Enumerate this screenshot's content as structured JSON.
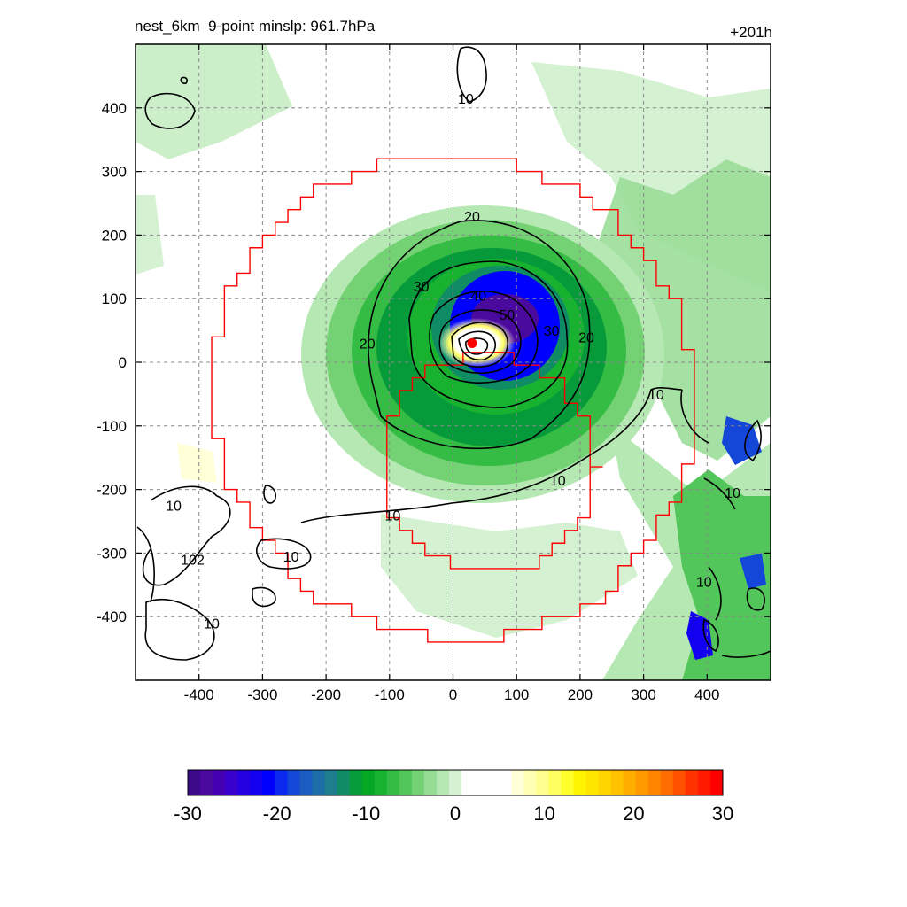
{
  "title_left": "nest_6km  9-point minslp: 961.7hPa",
  "title_right": "+201h",
  "chart_data": {
    "type": "contour-map",
    "xlim": [
      -500,
      500
    ],
    "ylim": [
      -500,
      500
    ],
    "x_ticks": [
      -400,
      -300,
      -200,
      -100,
      0,
      100,
      200,
      300,
      400
    ],
    "y_ticks": [
      400,
      300,
      200,
      100,
      0,
      -100,
      -200,
      -300,
      -400
    ],
    "grid": "dashed",
    "storm_center": {
      "x": 30,
      "y": 30
    },
    "inner_domain_radius": 170,
    "outer_domain_radius": 380,
    "wind_contour_labels": [
      {
        "text": "10",
        "x": 20,
        "y": 415
      },
      {
        "text": "20",
        "x": 30,
        "y": 230
      },
      {
        "text": "30",
        "x": -50,
        "y": 120
      },
      {
        "text": "40",
        "x": 40,
        "y": 105
      },
      {
        "text": "50",
        "x": 85,
        "y": 75
      },
      {
        "text": "30",
        "x": 155,
        "y": 50
      },
      {
        "text": "20",
        "x": 210,
        "y": 40
      },
      {
        "text": "20",
        "x": -135,
        "y": 30
      },
      {
        "text": "10",
        "x": 320,
        "y": -50
      },
      {
        "text": "10",
        "x": 165,
        "y": -185
      },
      {
        "text": "10",
        "x": -95,
        "y": -240
      },
      {
        "text": "10",
        "x": -440,
        "y": -225
      },
      {
        "text": "10",
        "x": -255,
        "y": -305
      },
      {
        "text": "102",
        "x": -410,
        "y": -310
      },
      {
        "text": "10",
        "x": -380,
        "y": -410
      },
      {
        "text": "10",
        "x": 440,
        "y": -205
      },
      {
        "text": "10",
        "x": 395,
        "y": -345
      }
    ],
    "colorbar": {
      "ticks": [
        -30,
        -20,
        -10,
        0,
        10,
        20,
        30
      ],
      "range": [
        -30,
        30
      ],
      "colors": [
        "#3d0a8c",
        "#4b0a9e",
        "#4500b4",
        "#3a00cc",
        "#2500e0",
        "#1400f0",
        "#0000ff",
        "#0a28ee",
        "#1446d8",
        "#1a5cc0",
        "#1e6ea8",
        "#1e7e90",
        "#0f8c64",
        "#079a3a",
        "#04a824",
        "#18b230",
        "#34bc44",
        "#52c65a",
        "#74d274",
        "#96dc94",
        "#b6e8b4",
        "#d4f2d2",
        "#ffffff",
        "#ffffff",
        "#ffffff",
        "#ffffff",
        "#ffffd8",
        "#ffffb4",
        "#ffff90",
        "#ffff60",
        "#ffff2c",
        "#fff400",
        "#ffe600",
        "#ffd400",
        "#ffc200",
        "#ffae00",
        "#ff9a00",
        "#ff8400",
        "#ff6c00",
        "#ff5000",
        "#ff3200",
        "#ff1a00",
        "#ff0000"
      ]
    }
  }
}
